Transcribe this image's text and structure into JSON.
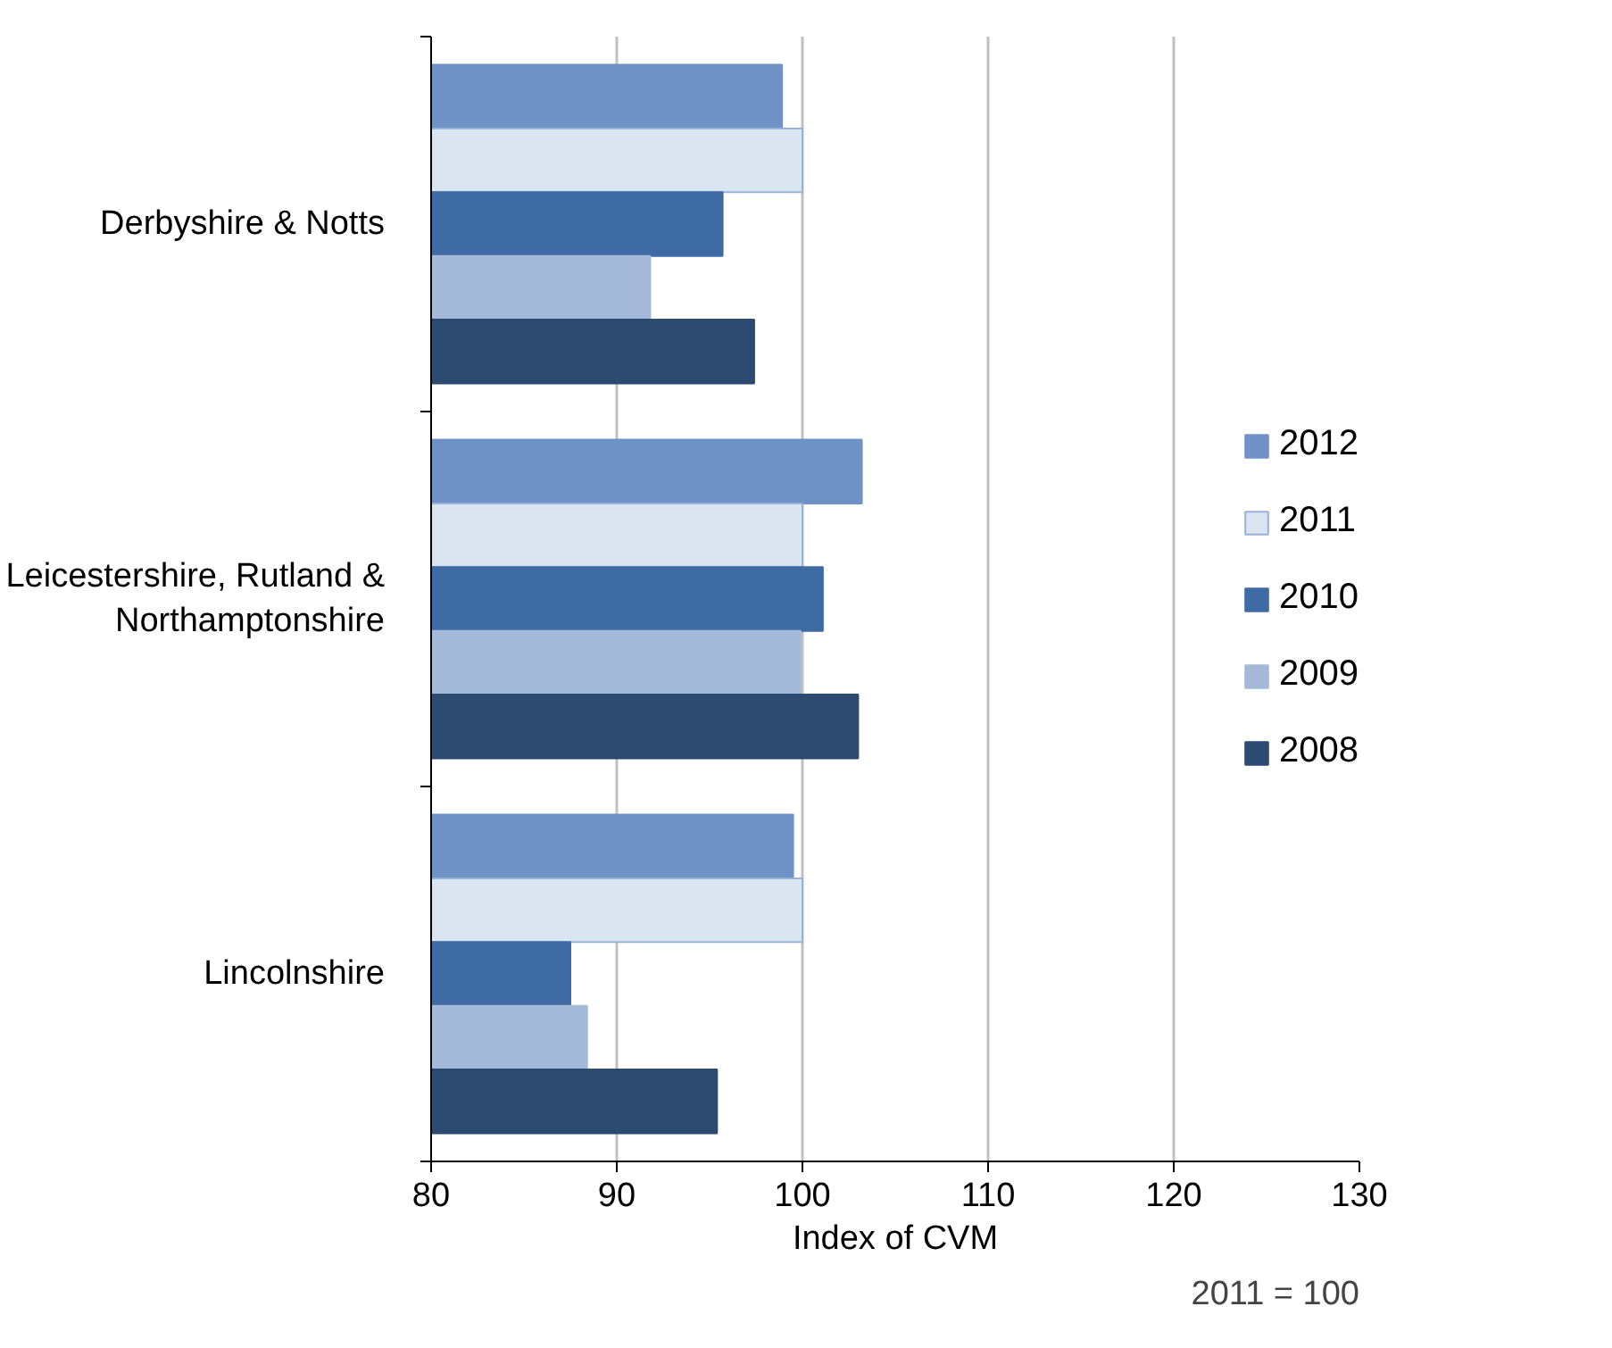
{
  "chart_data": {
    "type": "bar",
    "orientation": "horizontal",
    "xlabel": "Index of CVM",
    "categories": [
      "Derbyshire & Notts",
      "Leicestershire, Rutland & Northamptonshire",
      "Lincolnshire"
    ],
    "series": [
      {
        "name": "2012",
        "color": "#6f93c6",
        "values": [
          98.9,
          103.2,
          99.5
        ]
      },
      {
        "name": "2011",
        "color": "#dbe5f1",
        "values": [
          100,
          100,
          100
        ]
      },
      {
        "name": "2010",
        "color": "#3f6ba5",
        "values": [
          95.7,
          101.1,
          87.5
        ]
      },
      {
        "name": "2009",
        "color": "#a5bad9",
        "values": [
          91.8,
          99.9,
          88.4
        ]
      },
      {
        "name": "2008",
        "color": "#2d4a70",
        "values": [
          97.4,
          103.0,
          95.4
        ]
      }
    ],
    "xlim": [
      80,
      130
    ],
    "xticks": [
      80,
      90,
      100,
      110,
      120,
      130
    ],
    "grid": "x",
    "legend": "right",
    "annotations": [
      "2011 = 100"
    ]
  }
}
